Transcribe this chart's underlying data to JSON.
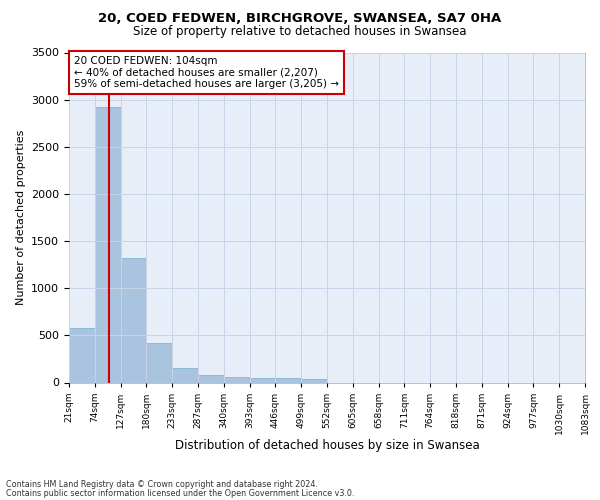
{
  "title_line1": "20, COED FEDWEN, BIRCHGROVE, SWANSEA, SA7 0HA",
  "title_line2": "Size of property relative to detached houses in Swansea",
  "xlabel": "Distribution of detached houses by size in Swansea",
  "ylabel": "Number of detached properties",
  "annotation_title": "20 COED FEDWEN: 104sqm",
  "annotation_line2": "← 40% of detached houses are smaller (2,207)",
  "annotation_line3": "59% of semi-detached houses are larger (3,205) →",
  "property_size": 104,
  "bin_edges": [
    21,
    74,
    127,
    180,
    233,
    287,
    340,
    393,
    446,
    499,
    552,
    605,
    658,
    711,
    764,
    818,
    871,
    924,
    977,
    1030,
    1083
  ],
  "bar_heights": [
    575,
    2920,
    1320,
    415,
    155,
    80,
    58,
    45,
    45,
    38,
    0,
    0,
    0,
    0,
    0,
    0,
    0,
    0,
    0,
    0
  ],
  "bar_color": "#aac4e0",
  "bar_edge_color": "#7aadd0",
  "vline_color": "#cc0000",
  "vline_x": 104,
  "annotation_box_color": "#cc0000",
  "grid_color": "#c8d4e8",
  "background_color": "#e8eef7",
  "ylim": [
    0,
    3500
  ],
  "yticks": [
    0,
    500,
    1000,
    1500,
    2000,
    2500,
    3000,
    3500
  ],
  "footer_line1": "Contains HM Land Registry data © Crown copyright and database right 2024.",
  "footer_line2": "Contains public sector information licensed under the Open Government Licence v3.0."
}
